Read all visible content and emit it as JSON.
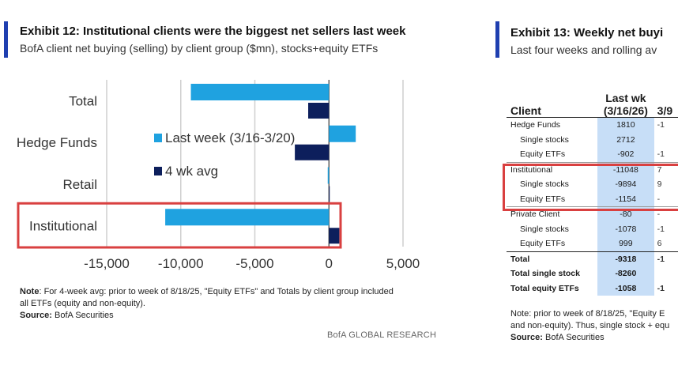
{
  "exhibit12": {
    "title": "Exhibit 12: Institutional clients were the biggest net sellers last week",
    "subtitle": "BofA client net buying (selling) by client group ($mn), stocks+equity ETFs",
    "note_label": "Note",
    "note_text": ": For 4-week avg: prior to week of 8/18/25, \"Equity ETFs\" and Totals by client group included",
    "note_text2": "all ETFs (equity and non-equity).",
    "source_label": "Source:",
    "source_text": " BofA Securities",
    "brand": "BofA GLOBAL RESEARCH"
  },
  "chart_data": {
    "type": "bar",
    "orientation": "horizontal",
    "title": "Exhibit 12: Institutional clients were the biggest net sellers last week",
    "subtitle": "BofA client net buying (selling) by client group ($mn), stocks+equity ETFs",
    "categories": [
      "Total",
      "Hedge Funds",
      "Retail",
      "Institutional"
    ],
    "series": [
      {
        "name": "Last week (3/16-3/20)",
        "color": "#1fa2e0",
        "values": [
          -9318,
          1810,
          -80,
          -11048
        ]
      },
      {
        "name": "4 wk avg",
        "color": "#0d1f5c",
        "values": [
          -1400,
          -2300,
          50,
          700
        ]
      }
    ],
    "xlim": [
      -15000,
      5000
    ],
    "xticks": [
      "-15,000",
      "-10,000",
      "-5,000",
      "0",
      "5,000"
    ],
    "xtick_values": [
      -15000,
      -10000,
      -5000,
      0,
      5000
    ],
    "grid": true,
    "legend_position": "center",
    "highlight_category": "Institutional",
    "highlight_color": "#d94040"
  },
  "exhibit13": {
    "title": "Exhibit 13: Weekly net buyi",
    "subtitle": "Last four weeks and rolling av",
    "col_client": "Client",
    "col_lastwk_1": "Last wk",
    "col_lastwk_2": "(3/16/26)",
    "col_next": "3/9",
    "rows": [
      {
        "label": "Hedge Funds",
        "indent": false,
        "value": "1810",
        "next": "-1",
        "bold": false,
        "line": ""
      },
      {
        "label": "Single stocks",
        "indent": true,
        "value": "2712",
        "next": "",
        "bold": false,
        "line": ""
      },
      {
        "label": "Equity ETFs",
        "indent": true,
        "value": "-902",
        "next": "-1",
        "bold": false,
        "line": ""
      },
      {
        "label": "Institutional",
        "indent": false,
        "value": "-11048",
        "next": "7",
        "bold": false,
        "line": "sep"
      },
      {
        "label": "Single stocks",
        "indent": true,
        "value": "-9894",
        "next": "9",
        "bold": false,
        "line": ""
      },
      {
        "label": "Equity ETFs",
        "indent": true,
        "value": "-1154",
        "next": "-",
        "bold": false,
        "line": ""
      },
      {
        "label": "Private Client",
        "indent": false,
        "value": "-80",
        "next": "-",
        "bold": false,
        "line": "sep"
      },
      {
        "label": "Single stocks",
        "indent": true,
        "value": "-1078",
        "next": "-1",
        "bold": false,
        "line": ""
      },
      {
        "label": "Equity ETFs",
        "indent": true,
        "value": "999",
        "next": "6",
        "bold": false,
        "line": ""
      },
      {
        "label": "Total",
        "indent": false,
        "value": "-9318",
        "next": "-1",
        "bold": true,
        "line": "top"
      },
      {
        "label": "Total single stock",
        "indent": false,
        "value": "-8260",
        "next": "",
        "bold": true,
        "line": ""
      },
      {
        "label": "Total equity ETFs",
        "indent": false,
        "value": "-1058",
        "next": "-1",
        "bold": true,
        "line": ""
      }
    ],
    "note_text": "Note: prior to week of 8/18/25, \"Equity E",
    "note_text2": "and non-equity). Thus, single stock + equ",
    "source_label": "Source:",
    "source_text": " BofA Securities"
  }
}
